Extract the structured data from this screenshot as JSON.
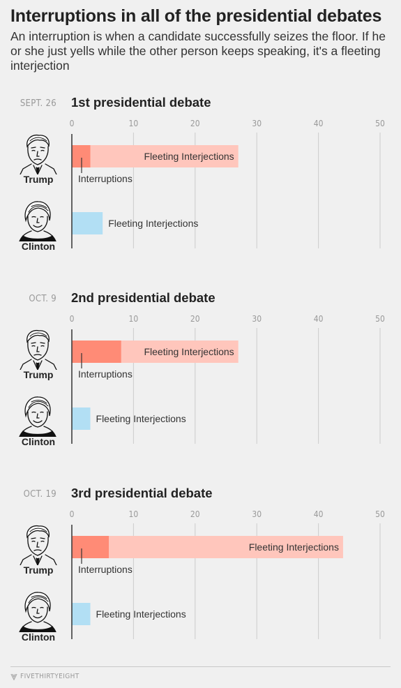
{
  "title": "Interruptions in all of the presidential debates",
  "subtitle": "An interruption is when a candidate successfully seizes the floor. If he or she just yells while the other person keeps speaking, it's a fleeting interjection",
  "footer": {
    "brand": "FIVETHIRTYEIGHT",
    "logo_icon": "fivethirtyeight-logo-icon"
  },
  "colors": {
    "trump_interruptions": "#ff8b76",
    "trump_fleeting": "#ffc6bc",
    "clinton_fleeting": "#b2dff4",
    "grid": "#cccccc",
    "axis": "#333333"
  },
  "chart_data": [
    {
      "type": "bar",
      "date": "SEPT. 26",
      "title": "1st presidential debate",
      "xlim": [
        0,
        50
      ],
      "ticks": [
        "0",
        "10",
        "20",
        "30",
        "40",
        "50"
      ],
      "rows": [
        {
          "name": "Trump",
          "icon": "trump-portrait-icon",
          "interruptions": 3,
          "fleeting_total": 27,
          "fleeting_label": "Fleeting Interjections",
          "interruptions_label": "Interruptions"
        },
        {
          "name": "Clinton",
          "icon": "clinton-portrait-icon",
          "interruptions": 0,
          "fleeting_total": 5,
          "fleeting_label": "Fleeting Interjections"
        }
      ]
    },
    {
      "type": "bar",
      "date": "OCT. 9",
      "title": "2nd presidential debate",
      "xlim": [
        0,
        50
      ],
      "ticks": [
        "0",
        "10",
        "20",
        "30",
        "40",
        "50"
      ],
      "rows": [
        {
          "name": "Trump",
          "icon": "trump-portrait-icon",
          "interruptions": 8,
          "fleeting_total": 27,
          "fleeting_label": "Fleeting Interjections",
          "interruptions_label": "Interruptions"
        },
        {
          "name": "Clinton",
          "icon": "clinton-portrait-icon",
          "interruptions": 0,
          "fleeting_total": 3,
          "fleeting_label": "Fleeting Interjections"
        }
      ]
    },
    {
      "type": "bar",
      "date": "OCT. 19",
      "title": "3rd presidential debate",
      "xlim": [
        0,
        50
      ],
      "ticks": [
        "0",
        "10",
        "20",
        "30",
        "40",
        "50"
      ],
      "rows": [
        {
          "name": "Trump",
          "icon": "trump-portrait-icon",
          "interruptions": 6,
          "fleeting_total": 44,
          "fleeting_label": "Fleeting Interjections",
          "interruptions_label": "Interruptions"
        },
        {
          "name": "Clinton",
          "icon": "clinton-portrait-icon",
          "interruptions": 0,
          "fleeting_total": 3,
          "fleeting_label": "Fleeting Interjections"
        }
      ]
    }
  ]
}
